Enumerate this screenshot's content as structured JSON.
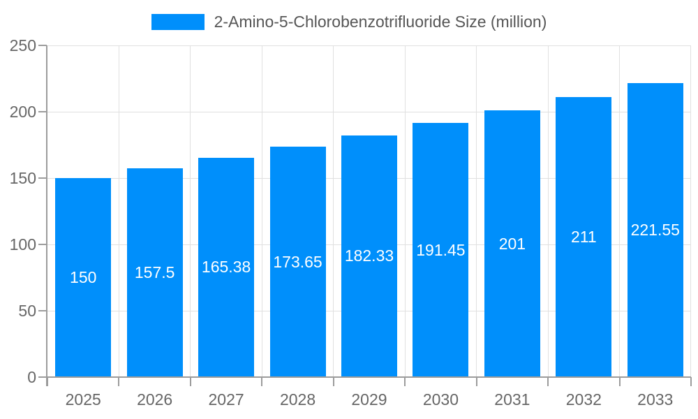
{
  "legend": {
    "label": "2-Amino-5-Chlorobenzotrifluoride Size (million)"
  },
  "chart_data": {
    "type": "bar",
    "title": "",
    "xlabel": "",
    "ylabel": "",
    "categories": [
      "2025",
      "2026",
      "2027",
      "2028",
      "2029",
      "2030",
      "2031",
      "2032",
      "2033"
    ],
    "series": [
      {
        "name": "2-Amino-5-Chlorobenzotrifluoride Size (million)",
        "values": [
          150,
          157.5,
          165.38,
          173.65,
          182.33,
          191.45,
          201,
          211,
          221.55
        ],
        "data_labels": [
          "150",
          "157.5",
          "165.38",
          "173.65",
          "182.33",
          "191.45",
          "201",
          "211",
          "221.55"
        ]
      }
    ],
    "ylim": [
      0,
      250
    ],
    "yticks": [
      0,
      50,
      100,
      150,
      200,
      250
    ],
    "grid": true,
    "legend_position": "top-center",
    "colors": {
      "bar": "#008FFB",
      "grid": "#e0e0e0",
      "axis": "#9c9c9c",
      "tick_label": "#666666",
      "legend_text": "#565656",
      "data_label": "#ffffff",
      "background": "#ffffff"
    }
  }
}
